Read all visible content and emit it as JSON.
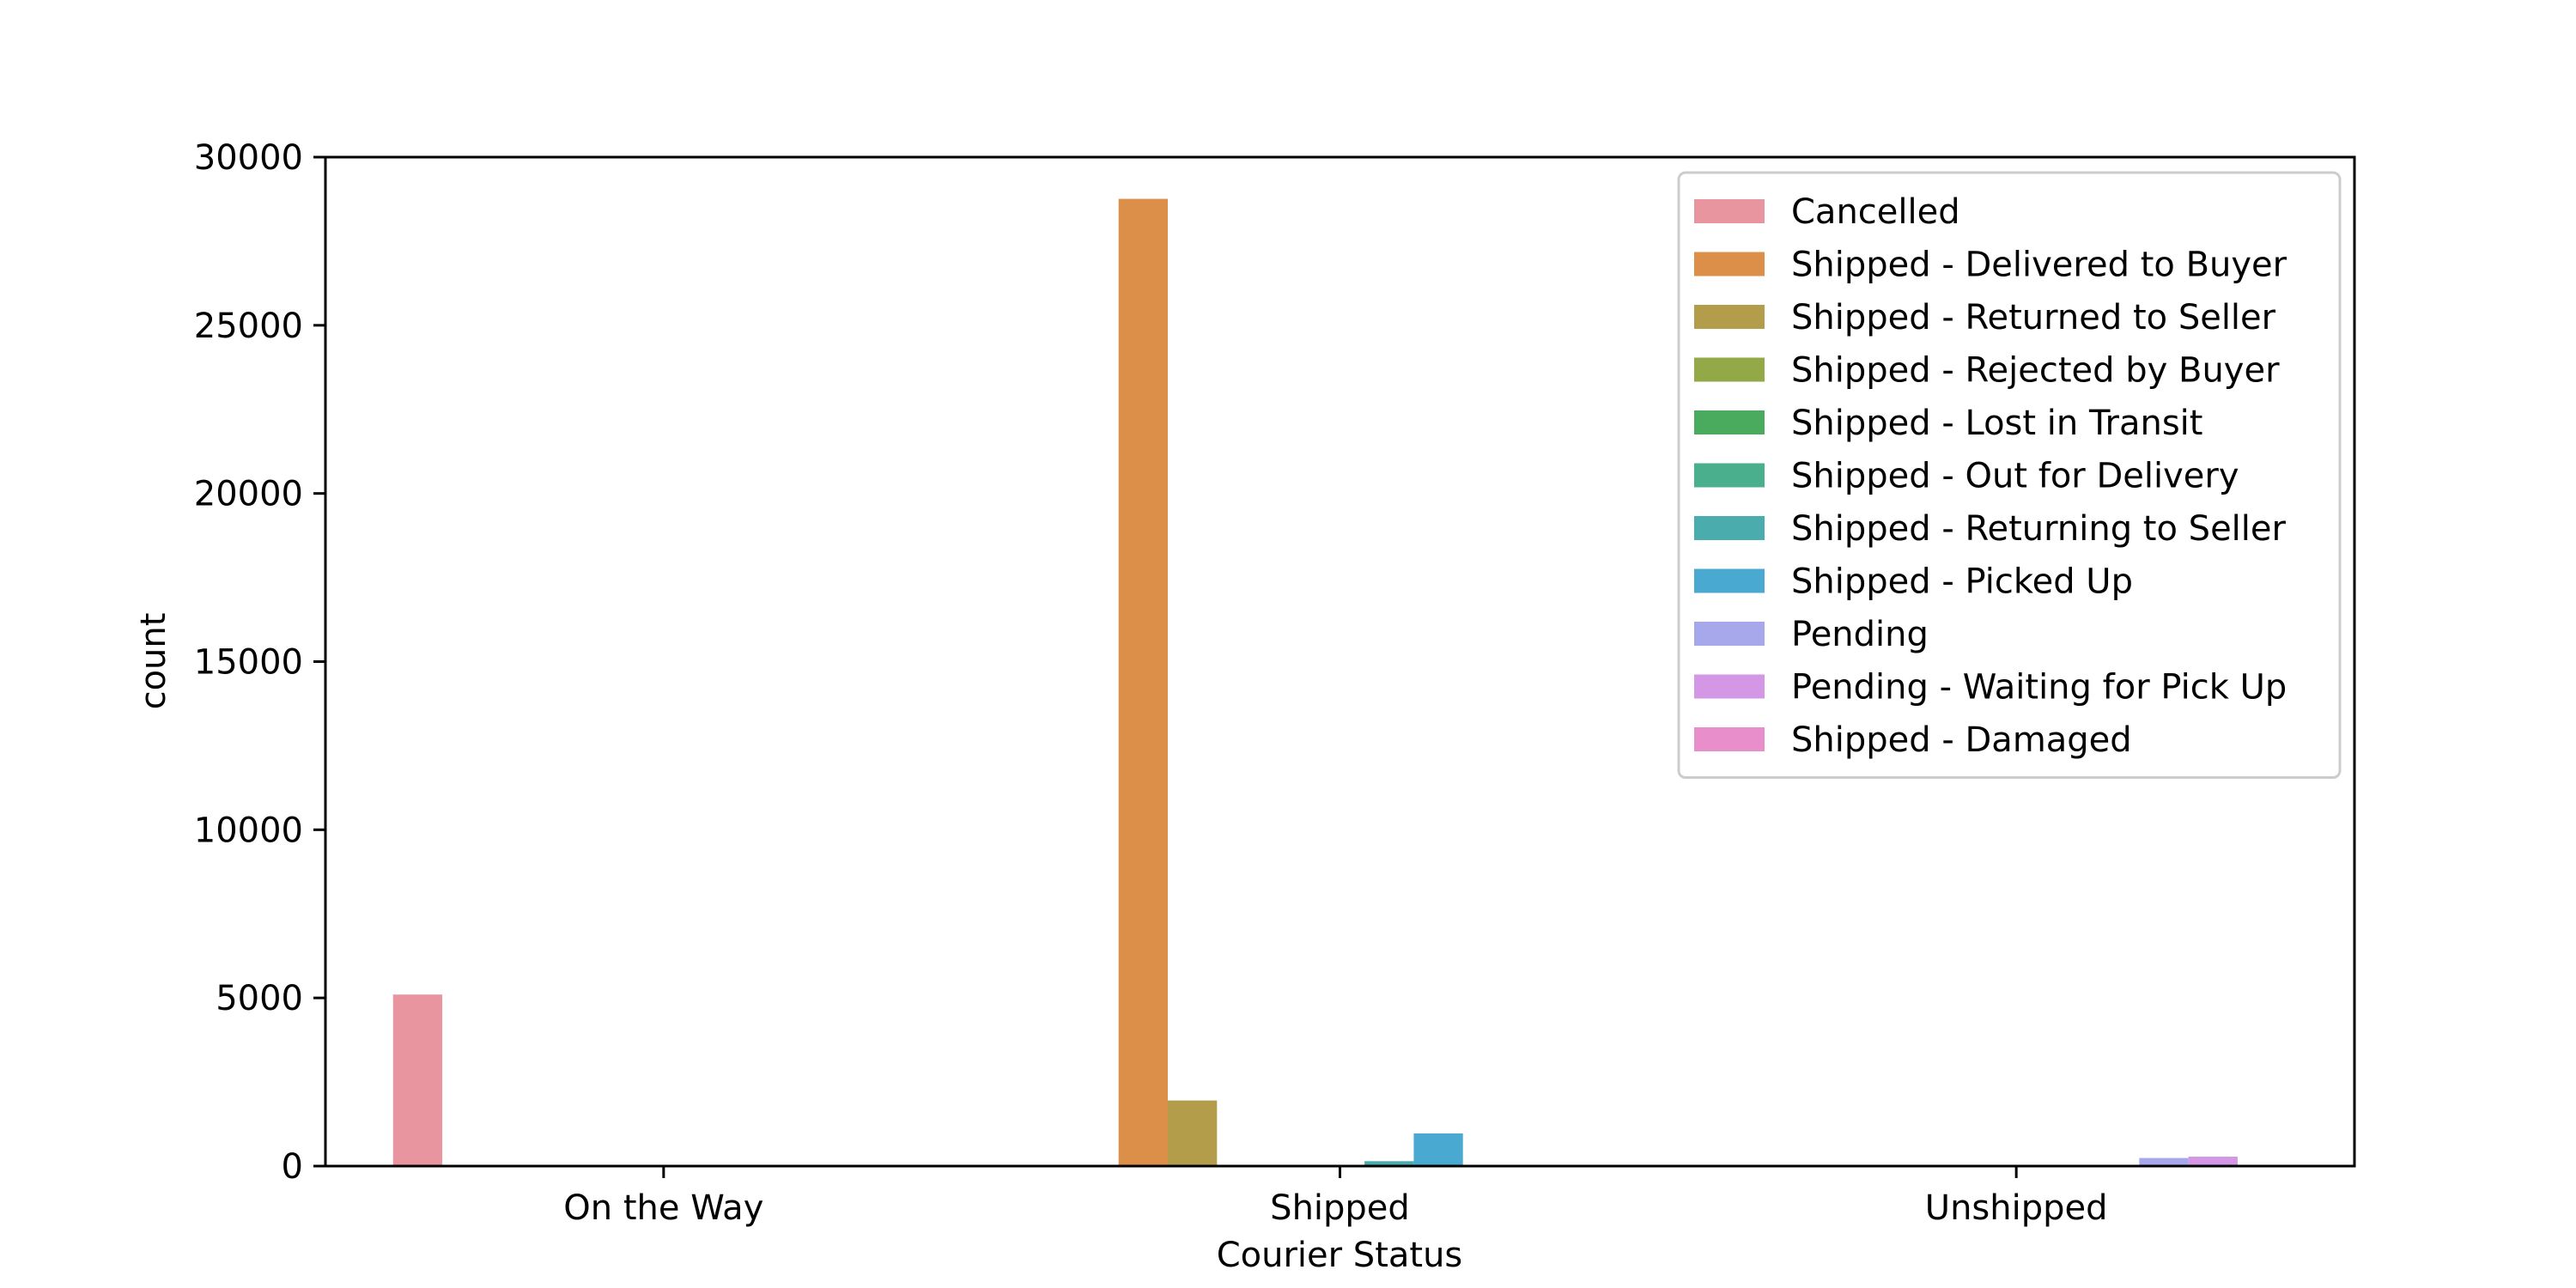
{
  "chart_data": {
    "type": "bar",
    "title": "",
    "xlabel": "Courier Status",
    "ylabel": "count",
    "categories": [
      "On the Way",
      "Shipped",
      "Unshipped"
    ],
    "ylim": [
      0,
      30000
    ],
    "yticks": [
      0,
      5000,
      10000,
      15000,
      20000,
      25000,
      30000
    ],
    "grid": false,
    "legend_position": "top-right",
    "series": [
      {
        "name": "Cancelled",
        "color": "#e8959f",
        "values": [
          5100,
          0,
          0
        ]
      },
      {
        "name": "Shipped - Delivered to Buyer",
        "color": "#db8f49",
        "values": [
          0,
          28760,
          0
        ]
      },
      {
        "name": "Shipped - Returned to Seller",
        "color": "#b39c4a",
        "values": [
          0,
          1950,
          0
        ]
      },
      {
        "name": "Shipped - Rejected by Buyer",
        "color": "#93a846",
        "values": [
          0,
          10,
          0
        ]
      },
      {
        "name": "Shipped - Lost in Transit",
        "color": "#4aab5e",
        "values": [
          0,
          5,
          0
        ]
      },
      {
        "name": "Shipped - Out for Delivery",
        "color": "#4aaf8d",
        "values": [
          0,
          35,
          0
        ]
      },
      {
        "name": "Shipped - Returning to Seller",
        "color": "#4aacac",
        "values": [
          0,
          145,
          0
        ]
      },
      {
        "name": "Shipped - Picked Up",
        "color": "#4aa9d1",
        "values": [
          0,
          970,
          0
        ]
      },
      {
        "name": "Pending",
        "color": "#a7a8ec",
        "values": [
          0,
          0,
          240
        ]
      },
      {
        "name": "Pending - Waiting for Pick Up",
        "color": "#d497e6",
        "values": [
          0,
          0,
          280
        ]
      },
      {
        "name": "Shipped - Damaged",
        "color": "#e88fcb",
        "values": [
          0,
          5,
          0
        ]
      }
    ]
  }
}
